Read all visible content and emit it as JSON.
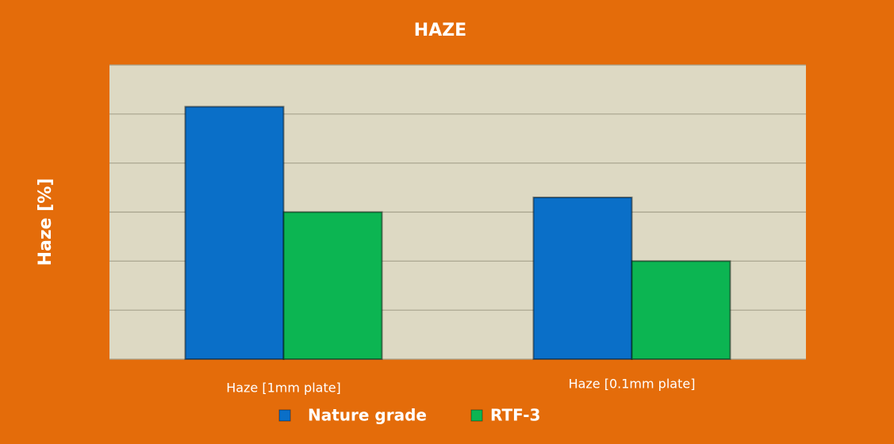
{
  "chart_data": {
    "type": "bar",
    "title": "HAZE",
    "y_label": "Haze [%]",
    "categories": [
      "Haze [1mm plate]",
      "Haze [0.1mm plate]"
    ],
    "series": [
      {
        "name": "Nature grade",
        "color": "#0a6fc8",
        "values": [
          5.15,
          3.3
        ]
      },
      {
        "name": "RTF-3",
        "color": "#0cb552",
        "values": [
          3.0,
          2.0
        ]
      }
    ],
    "ylim": [
      0,
      6
    ],
    "yticks": [
      0,
      1,
      2,
      3,
      4,
      5,
      6
    ],
    "grid": true,
    "legend": "bottom"
  }
}
